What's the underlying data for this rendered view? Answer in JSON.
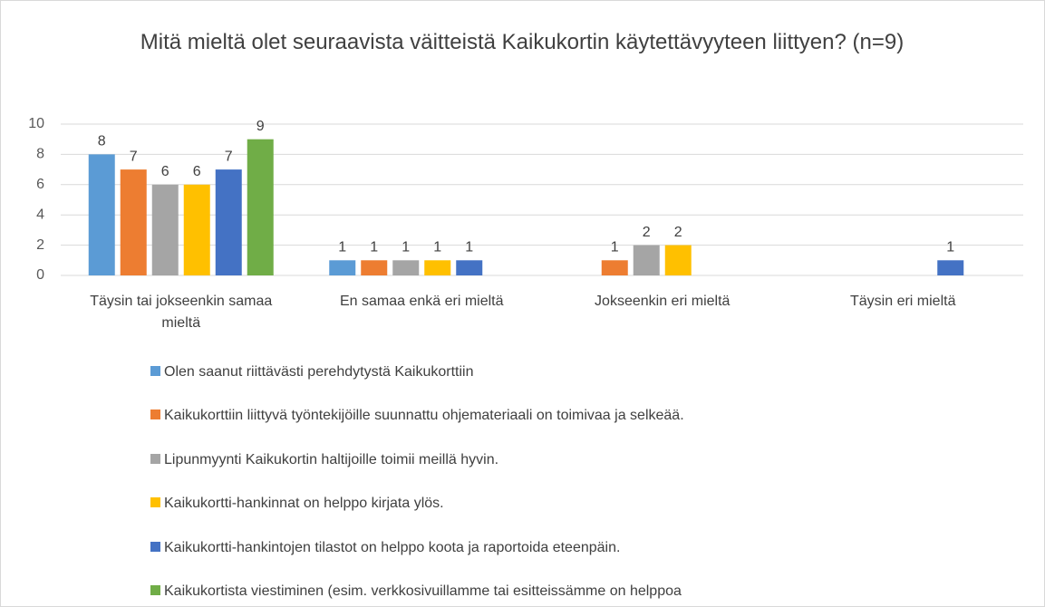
{
  "chart_data": {
    "type": "bar",
    "title": "Mitä mieltä olet seuraavista väitteistä Kaikukortin käytettävyyteen liittyen? (n=9)",
    "categories": [
      "Täysin tai jokseenkin samaa mieltä",
      "En samaa enkä eri mieltä",
      "Jokseenkin eri mieltä",
      "Täysin eri mieltä"
    ],
    "series": [
      {
        "name": "Olen saanut riittävästi perehdytystä Kaikukorttiin",
        "color": "#5b9bd5",
        "values": [
          8,
          1,
          null,
          null
        ]
      },
      {
        "name": "Kaikukorttiin liittyvä työntekijöille suunnattu ohjemateriaali on toimivaa ja selkeää.",
        "color": "#ed7d31",
        "values": [
          7,
          1,
          1,
          null
        ]
      },
      {
        "name": "Lipunmyynti Kaikukortin haltijoille toimii meillä hyvin.",
        "color": "#a5a5a5",
        "values": [
          6,
          1,
          2,
          null
        ]
      },
      {
        "name": "Kaikukortti-hankinnat on helppo kirjata ylös.",
        "color": "#ffc000",
        "values": [
          6,
          1,
          2,
          null
        ]
      },
      {
        "name": "Kaikukortti-hankintojen tilastot on helppo koota ja raportoida eteenpäin.",
        "color": "#4472c4",
        "values": [
          7,
          1,
          null,
          1
        ]
      },
      {
        "name": "Kaikukortista viestiminen (esim. verkkosivuillamme tai esitteissämme on helppoa",
        "color": "#70ad47",
        "values": [
          9,
          null,
          null,
          null
        ]
      }
    ],
    "ylim": [
      0,
      10
    ],
    "yticks": [
      0,
      2,
      4,
      6,
      8,
      10
    ],
    "grid": true,
    "legend": "bottom"
  }
}
